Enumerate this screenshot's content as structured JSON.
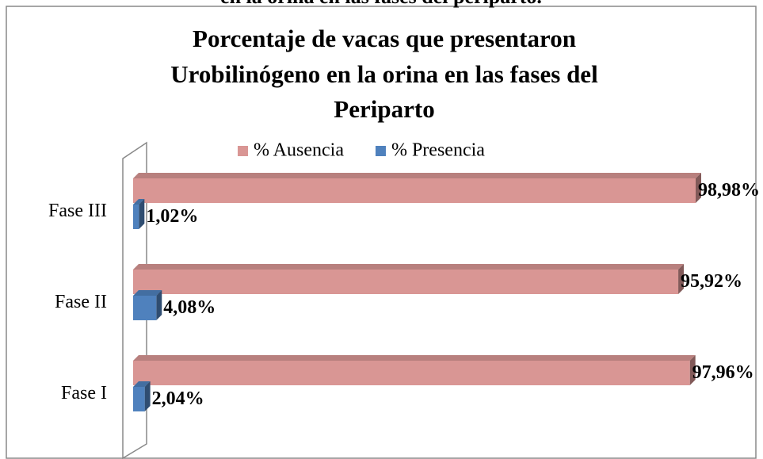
{
  "caption": "en la orina en las fases del periparto.",
  "chart_data": {
    "type": "hbar",
    "title": [
      "Porcentaje  de vacas que presentaron",
      "Urobilinógeno  en la orina en las fases del",
      "Periparto"
    ],
    "categories": [
      "Fase III",
      "Fase II",
      "Fase I"
    ],
    "series": [
      {
        "name": "% Ausencia",
        "color": "#d99694",
        "values": [
          98.98,
          95.92,
          97.96
        ],
        "value_labels": [
          "98,98%",
          "95,92%",
          "97,96%"
        ]
      },
      {
        "name": "% Presencia",
        "color": "#4f81bd",
        "values": [
          1.02,
          4.08,
          2.04
        ],
        "value_labels": [
          "1,02%",
          "4,08%",
          "2,04%"
        ]
      }
    ],
    "xlim": [
      0,
      100
    ],
    "legend": "top"
  }
}
